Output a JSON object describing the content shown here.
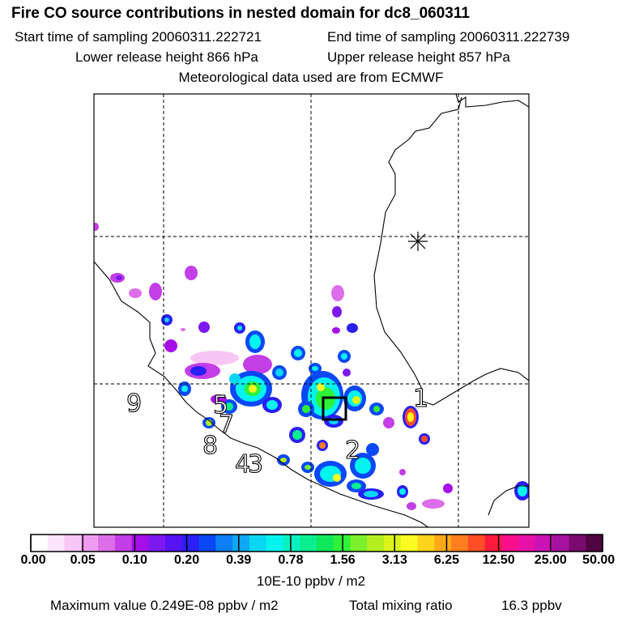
{
  "header": {
    "title": "Fire CO source contributions in nested domain for dc8_060311",
    "start_time": "Start time of sampling 20060311.222721",
    "end_time": "End time of sampling 20060311.222739",
    "lower_height": "Lower release height  866 hPa",
    "upper_height": "Upper release height  857 hPa",
    "met_data": "Meteorological data used are from ECMWF"
  },
  "map": {
    "region_labels": [
      "9",
      "5",
      "7",
      "8",
      "4",
      "3",
      "2",
      "1"
    ],
    "marker": "*"
  },
  "colorbar": {
    "colors": [
      "#ffffff",
      "#fde4fb",
      "#f8c6f5",
      "#ef9cf0",
      "#dd6ee9",
      "#c33ee6",
      "#a510e8",
      "#7d18ee",
      "#5513f2",
      "#2a1ff6",
      "#0a48f6",
      "#0c7ef6",
      "#0da9f4",
      "#0bd6f2",
      "#04f3ee",
      "#08f2c1",
      "#0bee8f",
      "#0ee85a",
      "#2ef23a",
      "#7bf02a",
      "#b4ee20",
      "#dcf41c",
      "#fafb22",
      "#ffd41a",
      "#ffa91a",
      "#ff7e1e",
      "#ff4d26",
      "#fe1a3c",
      "#f8108a",
      "#e611a8",
      "#c913b5",
      "#a5129e",
      "#7b0a6e",
      "#500540"
    ],
    "tick_labels": [
      "0.00",
      "0.05",
      "0.10",
      "0.20",
      "0.39",
      "0.78",
      "1.56",
      "3.13",
      "6.25",
      "12.50",
      "25.00",
      "50.00"
    ],
    "units": "10E-10 ppbv / m2"
  },
  "footer": {
    "max_value": "Maximum value  0.249E-08 ppbv / m2",
    "total_label": "Total mixing ratio",
    "total_value": "16.3 ppbv"
  }
}
